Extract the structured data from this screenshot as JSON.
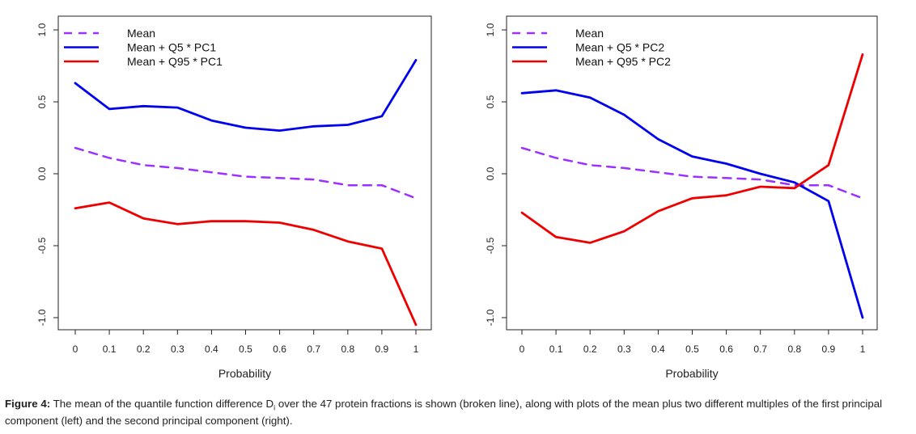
{
  "chart_data": [
    {
      "type": "line",
      "xlabel": "Probability",
      "ylabel": "",
      "xlim": [
        0,
        1
      ],
      "ylim": [
        -1.0,
        1.0
      ],
      "x_ticks": [
        0,
        0.1,
        0.2,
        0.3,
        0.4,
        0.5,
        0.6,
        0.7,
        0.8,
        0.9,
        1
      ],
      "x_tick_labels": [
        "0",
        "0.1",
        "0.2",
        "0.3",
        "0.4",
        "0.5",
        "0.6",
        "0.7",
        "0.8",
        "0.9",
        "1"
      ],
      "y_ticks": [
        -1.0,
        -0.5,
        0.0,
        0.5,
        1.0
      ],
      "y_tick_labels": [
        "-1.0",
        "-0.5",
        "0.0",
        "0.5",
        "1.0"
      ],
      "grid": false,
      "legend_position": "top-left",
      "x": [
        0,
        0.1,
        0.2,
        0.3,
        0.4,
        0.5,
        0.6,
        0.7,
        0.8,
        0.9,
        1
      ],
      "series": [
        {
          "name": "Mean",
          "color": "#9b30ff",
          "dashed": true,
          "values": [
            0.18,
            0.11,
            0.06,
            0.04,
            0.01,
            -0.02,
            -0.03,
            -0.04,
            -0.08,
            -0.08,
            -0.17
          ]
        },
        {
          "name": "Mean + Q5 * PC1",
          "color": "#0000ee",
          "dashed": false,
          "values": [
            0.63,
            0.45,
            0.47,
            0.46,
            0.37,
            0.32,
            0.3,
            0.33,
            0.34,
            0.4,
            0.79
          ]
        },
        {
          "name": "Mean + Q95 * PC1",
          "color": "#ee0000",
          "dashed": false,
          "values": [
            -0.24,
            -0.2,
            -0.31,
            -0.35,
            -0.33,
            -0.33,
            -0.34,
            -0.39,
            -0.47,
            -0.52,
            -1.05
          ]
        }
      ]
    },
    {
      "type": "line",
      "xlabel": "Probability",
      "ylabel": "",
      "xlim": [
        0,
        1
      ],
      "ylim": [
        -1.0,
        1.0
      ],
      "x_ticks": [
        0,
        0.1,
        0.2,
        0.3,
        0.4,
        0.5,
        0.6,
        0.7,
        0.8,
        0.9,
        1
      ],
      "x_tick_labels": [
        "0",
        "0.1",
        "0.2",
        "0.3",
        "0.4",
        "0.5",
        "0.6",
        "0.7",
        "0.8",
        "0.9",
        "1"
      ],
      "y_ticks": [
        -1.0,
        -0.5,
        0.0,
        0.5,
        1.0
      ],
      "y_tick_labels": [
        "-1.0",
        "-0.5",
        "0.0",
        "0.5",
        "1.0"
      ],
      "grid": false,
      "legend_position": "top-left",
      "x": [
        0,
        0.1,
        0.2,
        0.3,
        0.4,
        0.5,
        0.6,
        0.7,
        0.8,
        0.9,
        1
      ],
      "series": [
        {
          "name": "Mean",
          "color": "#9b30ff",
          "dashed": true,
          "values": [
            0.18,
            0.11,
            0.06,
            0.04,
            0.01,
            -0.02,
            -0.03,
            -0.04,
            -0.08,
            -0.08,
            -0.17
          ]
        },
        {
          "name": "Mean + Q5 * PC2",
          "color": "#0000ee",
          "dashed": false,
          "values": [
            0.56,
            0.58,
            0.53,
            0.41,
            0.24,
            0.12,
            0.07,
            0.0,
            -0.06,
            -0.19,
            -1.0
          ]
        },
        {
          "name": "Mean + Q95 * PC2",
          "color": "#ee0000",
          "dashed": false,
          "values": [
            -0.27,
            -0.44,
            -0.48,
            -0.4,
            -0.26,
            -0.17,
            -0.15,
            -0.09,
            -0.1,
            0.06,
            0.83
          ]
        }
      ]
    }
  ],
  "caption": {
    "label": "Figure 4:",
    "text_before_sub": " The mean of the quantile function difference D",
    "sub": "i",
    "text_after_sub": " over the 47 protein fractions is shown (broken line), along with plots of the mean plus two different multiples of the first principal component (left) and the second principal component (right)."
  }
}
